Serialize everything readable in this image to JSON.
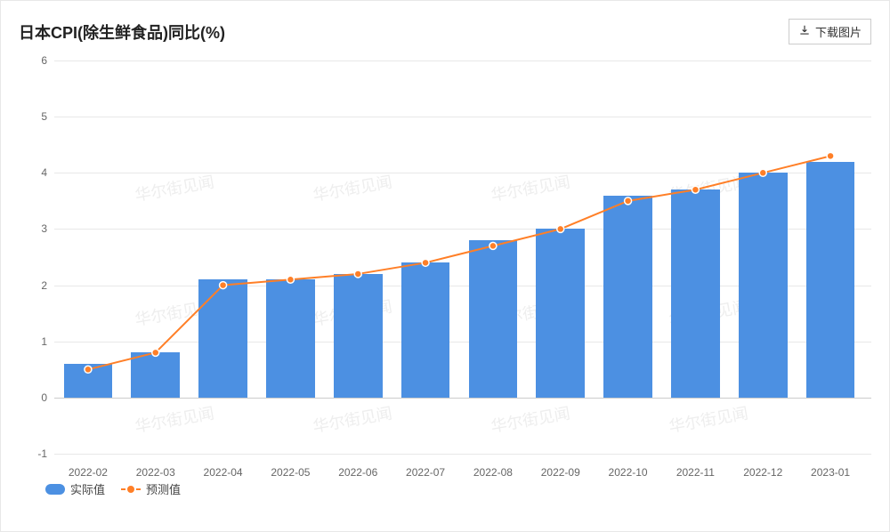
{
  "chart": {
    "type": "bar+line",
    "title": "日本CPI(除生鲜食品)同比(%)",
    "download_label": "下载图片",
    "categories": [
      "2022-02",
      "2022-03",
      "2022-04",
      "2022-05",
      "2022-06",
      "2022-07",
      "2022-08",
      "2022-09",
      "2022-10",
      "2022-11",
      "2022-12",
      "2023-01"
    ],
    "series_bar": {
      "name": "实际值",
      "color": "#4c90e2",
      "values": [
        0.6,
        0.8,
        2.1,
        2.1,
        2.2,
        2.4,
        2.8,
        3.0,
        3.6,
        3.7,
        4.0,
        4.2
      ]
    },
    "series_line": {
      "name": "预测值",
      "color": "#ff7f27",
      "line_width": 2,
      "marker_radius": 4,
      "marker_fill": "#ff7f27",
      "marker_stroke": "#ffffff",
      "values": [
        0.5,
        0.8,
        2.0,
        2.1,
        2.2,
        2.4,
        2.7,
        3.0,
        3.5,
        3.7,
        4.0,
        4.3
      ]
    },
    "y_axis": {
      "min": -1,
      "max": 6,
      "ticks": [
        -1,
        0,
        1,
        2,
        3,
        4,
        5,
        6
      ]
    },
    "grid_color": "#e8e8e8",
    "baseline_color": "#cccccc",
    "background_color": "#ffffff",
    "bar_width_ratio": 0.72,
    "label_fontsize": 12,
    "title_fontsize": 18,
    "watermark_text": "华尔街见闻",
    "watermark_color": "#eeeeee"
  }
}
